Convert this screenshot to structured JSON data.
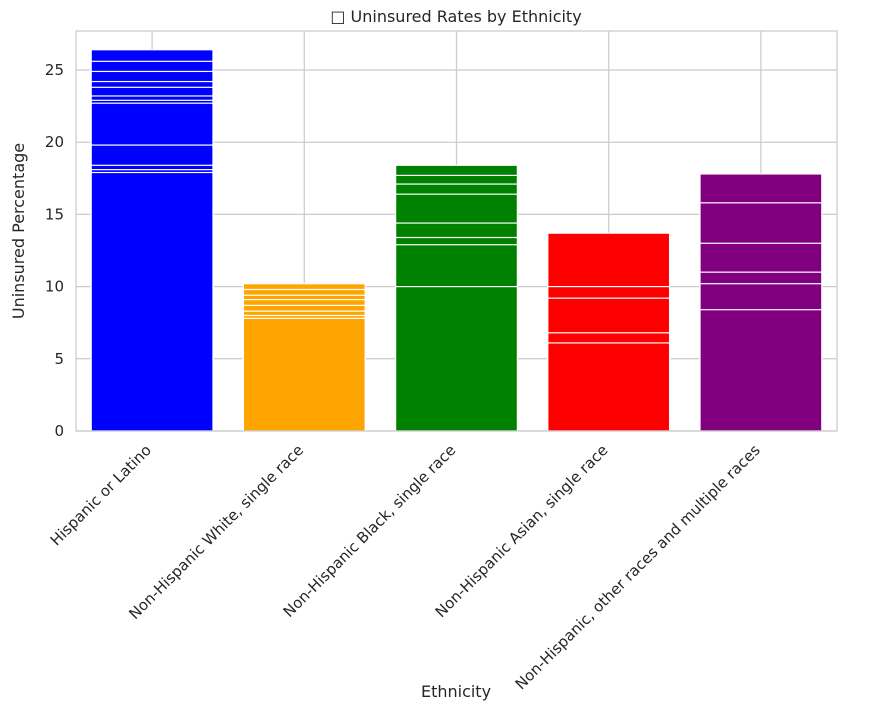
{
  "chart_data": {
    "type": "bar",
    "title": "□ Uninsured Rates by Ethnicity",
    "xlabel": "Ethnicity",
    "ylabel": "Uninsured Percentage",
    "ylim": [
      0,
      27.7
    ],
    "yticks": [
      0,
      5,
      10,
      15,
      20,
      25
    ],
    "grid": true,
    "categories": [
      "Hispanic or Latino",
      "Non-Hispanic White, single race",
      "Non-Hispanic Black, single race",
      "Non-Hispanic Asian, single race",
      "Non-Hispanic, other races and multiple races"
    ],
    "colors": [
      "#0000ff",
      "#ffa500",
      "#008000",
      "#ff0000",
      "#800080"
    ],
    "values": [
      26.4,
      10.2,
      18.4,
      13.7,
      17.8
    ],
    "overlapping_values": [
      [
        26.4,
        25.6,
        24.9,
        24.2,
        23.8,
        23.2,
        22.9,
        22.7,
        19.8,
        18.4,
        18.1,
        17.9
      ],
      [
        10.2,
        9.8,
        9.4,
        9.1,
        8.7,
        8.3,
        8.0,
        7.8
      ],
      [
        18.4,
        17.7,
        17.1,
        16.4,
        14.4,
        13.4,
        12.9,
        10.0
      ],
      [
        13.7,
        10.0,
        9.2,
        6.8,
        6.1
      ],
      [
        17.8,
        15.8,
        13.0,
        11.0,
        10.2,
        8.4
      ]
    ]
  }
}
